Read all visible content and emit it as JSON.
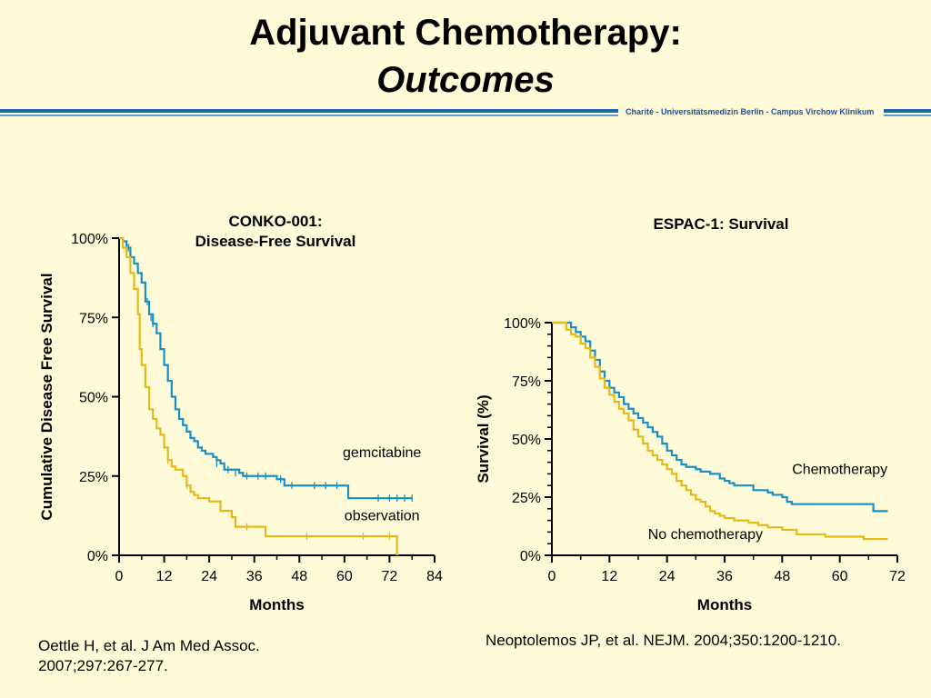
{
  "slide": {
    "title_line1": "Adjuvant Chemotherapy:",
    "title_line2": "Outcomes",
    "affiliation": "Charité - Universitätsmedizin Berlin - Campus Virchow Klinikum",
    "accent_color": "#1c6aa3"
  },
  "citations": {
    "left_line1": "Oettle H, et al. J Am Med Assoc.",
    "left_line2": "2007;297:267-277.",
    "right": "Neoptolemos JP, et al. NEJM. 2004;350:1200-1210."
  },
  "chart_data": [
    {
      "type": "line",
      "step": true,
      "title_lines": [
        "CONKO-001:",
        "Disease-Free Survival"
      ],
      "xlabel": "Months",
      "ylabel": "Cumulative Disease Free Survival",
      "xlim": [
        0,
        84
      ],
      "ylim": [
        0,
        100
      ],
      "x_ticks": [
        0,
        12,
        24,
        36,
        48,
        60,
        72,
        84
      ],
      "y_ticks": [
        "0%",
        "25%",
        "50%",
        "75%",
        "100%"
      ],
      "y_tick_values": [
        0,
        25,
        50,
        75,
        100
      ],
      "series": [
        {
          "name": "gemcitabine",
          "color": "#1a8fc4",
          "label_pos": [
            70,
            31
          ],
          "points": [
            [
              0,
              100
            ],
            [
              1,
              99
            ],
            [
              2,
              97
            ],
            [
              3,
              94
            ],
            [
              4,
              92
            ],
            [
              5,
              89
            ],
            [
              6,
              86
            ],
            [
              7,
              80
            ],
            [
              8,
              76
            ],
            [
              9,
              73
            ],
            [
              10,
              70
            ],
            [
              11,
              65
            ],
            [
              12,
              60
            ],
            [
              13,
              55
            ],
            [
              14,
              50
            ],
            [
              15,
              46
            ],
            [
              16,
              43
            ],
            [
              17,
              41
            ],
            [
              18,
              39
            ],
            [
              19,
              37
            ],
            [
              20,
              36
            ],
            [
              21,
              34
            ],
            [
              22,
              33
            ],
            [
              23,
              32
            ],
            [
              25,
              31
            ],
            [
              26,
              30
            ],
            [
              27,
              29
            ],
            [
              28,
              27
            ],
            [
              31,
              27
            ],
            [
              32,
              26
            ],
            [
              33,
              25
            ],
            [
              40,
              25
            ],
            [
              42,
              24
            ],
            [
              44,
              22
            ],
            [
              50,
              22
            ],
            [
              60,
              22
            ],
            [
              61,
              18
            ],
            [
              78,
              18
            ]
          ],
          "censor": [
            [
              1,
              99
            ],
            [
              2,
              98
            ],
            [
              2.5,
              97
            ],
            [
              3,
              95
            ],
            [
              4,
              93
            ],
            [
              6,
              87
            ],
            [
              7,
              82
            ],
            [
              7.5,
              80
            ],
            [
              8,
              77
            ],
            [
              8.5,
              75
            ],
            [
              9,
              73
            ],
            [
              10,
              71
            ],
            [
              11,
              67
            ],
            [
              12,
              61
            ],
            [
              13,
              56
            ],
            [
              14,
              51
            ],
            [
              16,
              44
            ],
            [
              17,
              42
            ],
            [
              18,
              40
            ],
            [
              26,
              29
            ],
            [
              29,
              27
            ],
            [
              31,
              26
            ],
            [
              34,
              25
            ],
            [
              37,
              25
            ],
            [
              39,
              25
            ],
            [
              43,
              24
            ],
            [
              46,
              22
            ],
            [
              52,
              22
            ],
            [
              55,
              22
            ],
            [
              58,
              22
            ],
            [
              69,
              18
            ],
            [
              72,
              18
            ],
            [
              74,
              18
            ],
            [
              76,
              18
            ],
            [
              78,
              18
            ]
          ]
        },
        {
          "name": "observation",
          "color": "#e6b917",
          "label_pos": [
            70,
            11
          ],
          "points": [
            [
              0,
              100
            ],
            [
              1,
              97
            ],
            [
              2,
              94
            ],
            [
              3,
              89
            ],
            [
              4,
              84
            ],
            [
              5,
              76
            ],
            [
              5.5,
              65
            ],
            [
              6,
              60
            ],
            [
              7,
              53
            ],
            [
              8,
              46
            ],
            [
              9,
              43
            ],
            [
              10,
              40
            ],
            [
              11,
              38
            ],
            [
              12,
              34
            ],
            [
              13,
              30
            ],
            [
              14,
              28
            ],
            [
              15,
              27
            ],
            [
              17,
              25
            ],
            [
              18,
              22
            ],
            [
              19,
              20
            ],
            [
              20,
              19
            ],
            [
              21,
              18
            ],
            [
              24,
              17
            ],
            [
              27,
              14
            ],
            [
              30,
              12
            ],
            [
              31,
              9
            ],
            [
              38,
              9
            ],
            [
              39,
              6
            ],
            [
              74,
              6
            ],
            [
              74,
              0
            ]
          ],
          "censor": [
            [
              1,
              98
            ],
            [
              2,
              95
            ],
            [
              3,
              90
            ],
            [
              13,
              30
            ],
            [
              18,
              22
            ],
            [
              34,
              9
            ],
            [
              50,
              6
            ],
            [
              65,
              6
            ],
            [
              72,
              6
            ]
          ]
        }
      ]
    },
    {
      "type": "line",
      "step": true,
      "title_lines": [
        "ESPAC-1: Survival"
      ],
      "xlabel": "Months",
      "ylabel": "Survival (%)",
      "xlim": [
        0,
        72
      ],
      "ylim": [
        0,
        100
      ],
      "x_ticks": [
        0,
        12,
        24,
        36,
        48,
        60,
        72
      ],
      "y_ticks": [
        "0%",
        "25%",
        "50%",
        "75%",
        "100%"
      ],
      "y_tick_values": [
        0,
        25,
        50,
        75,
        100
      ],
      "series": [
        {
          "name": "Chemotherapy",
          "color": "#1a8fc4",
          "label_pos": [
            60,
            35
          ],
          "points": [
            [
              0,
              100
            ],
            [
              3,
              100
            ],
            [
              4,
              98
            ],
            [
              5,
              96
            ],
            [
              6,
              94
            ],
            [
              7,
              92
            ],
            [
              8,
              88
            ],
            [
              9,
              84
            ],
            [
              10,
              79
            ],
            [
              11,
              75
            ],
            [
              12,
              72
            ],
            [
              13,
              70
            ],
            [
              14,
              68
            ],
            [
              15,
              65
            ],
            [
              16,
              63
            ],
            [
              17,
              61
            ],
            [
              18,
              59
            ],
            [
              19,
              57
            ],
            [
              20,
              55
            ],
            [
              21,
              53
            ],
            [
              22,
              51
            ],
            [
              23,
              48
            ],
            [
              24,
              45
            ],
            [
              25,
              43
            ],
            [
              26,
              41
            ],
            [
              27,
              39
            ],
            [
              28,
              38
            ],
            [
              30,
              37
            ],
            [
              31,
              36
            ],
            [
              33,
              35
            ],
            [
              35,
              33
            ],
            [
              36,
              32
            ],
            [
              37,
              31
            ],
            [
              38,
              30
            ],
            [
              41,
              30
            ],
            [
              42,
              28
            ],
            [
              45,
              27
            ],
            [
              46,
              26
            ],
            [
              48,
              25
            ],
            [
              49,
              23
            ],
            [
              50,
              22
            ],
            [
              66,
              22
            ],
            [
              67,
              19
            ],
            [
              70,
              19
            ]
          ],
          "censor": []
        },
        {
          "name": "No chemotherapy",
          "color": "#e6b917",
          "label_pos": [
            32,
            7
          ],
          "points": [
            [
              0,
              100
            ],
            [
              2,
              100
            ],
            [
              3,
              97
            ],
            [
              4,
              95
            ],
            [
              5,
              94
            ],
            [
              6,
              91
            ],
            [
              7,
              89
            ],
            [
              8,
              85
            ],
            [
              9,
              81
            ],
            [
              10,
              76
            ],
            [
              11,
              72
            ],
            [
              12,
              69
            ],
            [
              13,
              66
            ],
            [
              14,
              63
            ],
            [
              15,
              61
            ],
            [
              16,
              58
            ],
            [
              17,
              54
            ],
            [
              18,
              51
            ],
            [
              19,
              48
            ],
            [
              20,
              45
            ],
            [
              21,
              43
            ],
            [
              22,
              41
            ],
            [
              23,
              39
            ],
            [
              24,
              37
            ],
            [
              25,
              35
            ],
            [
              26,
              32
            ],
            [
              27,
              30
            ],
            [
              28,
              28
            ],
            [
              29,
              26
            ],
            [
              30,
              24
            ],
            [
              31,
              23
            ],
            [
              32,
              21
            ],
            [
              33,
              19
            ],
            [
              34,
              18
            ],
            [
              35,
              17
            ],
            [
              36,
              16
            ],
            [
              38,
              15
            ],
            [
              41,
              14
            ],
            [
              43,
              13
            ],
            [
              45,
              12
            ],
            [
              48,
              11
            ],
            [
              51,
              9
            ],
            [
              56,
              9
            ],
            [
              57,
              8
            ],
            [
              64,
              8
            ],
            [
              65,
              7
            ],
            [
              70,
              7
            ]
          ],
          "censor": []
        }
      ]
    }
  ]
}
